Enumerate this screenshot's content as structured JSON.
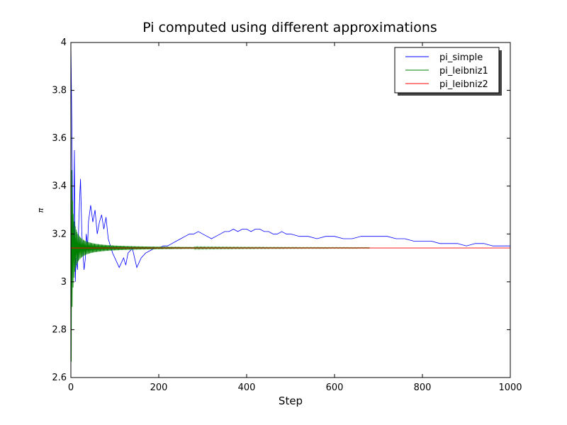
{
  "chart_data": {
    "type": "line",
    "title": "Pi computed using different approximations",
    "xlabel": "Step",
    "ylabel": "π",
    "xlim": [
      0,
      1000
    ],
    "ylim": [
      2.6,
      4.0
    ],
    "x_ticks": [
      0,
      200,
      400,
      600,
      800,
      1000
    ],
    "x_tick_labels": [
      "0",
      "200",
      "400",
      "600",
      "800",
      "1000"
    ],
    "y_ticks": [
      2.6,
      2.8,
      3.0,
      3.2,
      3.4,
      3.6,
      3.8,
      4.0
    ],
    "y_tick_labels": [
      "2.6",
      "2.8",
      "3",
      "3.2",
      "3.4",
      "3.6",
      "3.8",
      "4"
    ],
    "grid": false,
    "legend_position": "top-right",
    "series": [
      {
        "name": "pi_simple",
        "color": "#0000ff",
        "x": [
          0,
          2,
          4,
          6,
          8,
          10,
          12,
          15,
          18,
          20,
          22,
          25,
          28,
          30,
          33,
          35,
          38,
          40,
          45,
          50,
          55,
          60,
          65,
          70,
          75,
          80,
          85,
          90,
          95,
          100,
          105,
          110,
          115,
          120,
          125,
          130,
          140,
          150,
          160,
          170,
          180,
          190,
          200,
          210,
          220,
          230,
          240,
          250,
          260,
          270,
          280,
          290,
          300,
          310,
          320,
          330,
          340,
          350,
          360,
          370,
          380,
          390,
          400,
          410,
          420,
          430,
          440,
          450,
          460,
          470,
          480,
          490,
          500,
          520,
          540,
          560,
          580,
          600,
          620,
          640,
          660,
          680,
          700,
          720,
          740,
          760,
          780,
          800,
          820,
          840,
          860,
          880,
          900,
          920,
          940,
          960,
          980,
          1000
        ],
        "y": [
          4.0,
          3.7,
          3.3,
          3.15,
          3.55,
          3.0,
          3.1,
          3.05,
          3.25,
          3.35,
          3.43,
          3.2,
          3.1,
          3.05,
          3.1,
          3.2,
          3.15,
          3.25,
          3.32,
          3.25,
          3.3,
          3.2,
          3.25,
          3.28,
          3.22,
          3.27,
          3.18,
          3.15,
          3.12,
          3.1,
          3.08,
          3.06,
          3.08,
          3.1,
          3.07,
          3.12,
          3.14,
          3.06,
          3.1,
          3.12,
          3.13,
          3.14,
          3.14,
          3.15,
          3.15,
          3.16,
          3.17,
          3.18,
          3.19,
          3.2,
          3.2,
          3.21,
          3.2,
          3.19,
          3.18,
          3.19,
          3.2,
          3.21,
          3.21,
          3.22,
          3.21,
          3.22,
          3.22,
          3.21,
          3.22,
          3.22,
          3.21,
          3.21,
          3.2,
          3.2,
          3.21,
          3.2,
          3.2,
          3.19,
          3.19,
          3.18,
          3.19,
          3.19,
          3.18,
          3.18,
          3.19,
          3.19,
          3.19,
          3.19,
          3.18,
          3.18,
          3.17,
          3.17,
          3.17,
          3.16,
          3.16,
          3.16,
          3.15,
          3.16,
          3.16,
          3.15,
          3.15,
          3.15
        ]
      },
      {
        "name": "pi_leibniz1",
        "color": "#008000",
        "x": [
          0,
          680
        ],
        "y": [
          4.0,
          3.14
        ],
        "note_values": [],
        "oscillating_start": [
          4.0,
          2.667,
          3.467,
          2.895,
          3.34,
          2.976,
          3.284,
          3.017,
          3.252,
          3.042,
          3.232,
          3.058,
          3.218,
          3.071,
          3.208,
          3.079,
          3.2,
          3.086,
          3.194,
          3.092
        ],
        "end_value": 3.1415
      },
      {
        "name": "pi_leibniz2",
        "color": "#ff0000",
        "x": [
          0,
          1000
        ],
        "y": [
          3.1416,
          3.1416
        ]
      }
    ]
  }
}
